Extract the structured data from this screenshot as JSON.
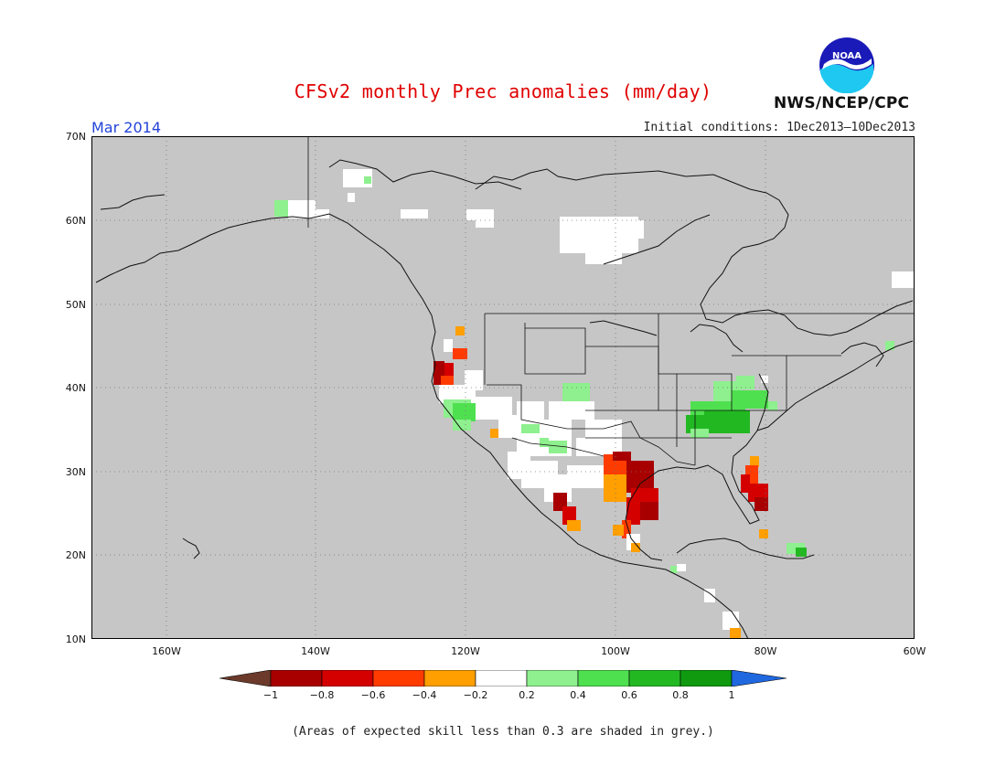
{
  "title": "CFSv2 monthly Prec anomalies (mm/day)",
  "month_label": "Mar 2014",
  "initial_conditions": "Initial conditions: 1Dec2013–10Dec2013",
  "agency": "NWS/NCEP/CPC",
  "logo_text": "NOAA",
  "lat_labels": [
    "70N",
    "60N",
    "50N",
    "40N",
    "30N",
    "20N",
    "10N"
  ],
  "lon_labels": [
    "160W",
    "140W",
    "120W",
    "100W",
    "80W",
    "60W"
  ],
  "colorbar_labels": [
    "−1",
    "−0.8",
    "−0.6",
    "−0.4",
    "−0.2",
    "0.2",
    "0.4",
    "0.6",
    "0.8",
    "1"
  ],
  "colorbar_colors": [
    "#6b3a2a",
    "#a80000",
    "#d40000",
    "#ff3b00",
    "#ff9f00",
    "#ffffff",
    "#8ef08e",
    "#4fe04f",
    "#22b822",
    "#0f9a0f",
    "#2068e0"
  ],
  "footnote": "(Areas of expected skill less than 0.3 are shaded in grey.)",
  "colors": {
    "title": "#e00000",
    "month": "#2343d8",
    "skill_mask_grey": "#c6c6c6"
  }
}
